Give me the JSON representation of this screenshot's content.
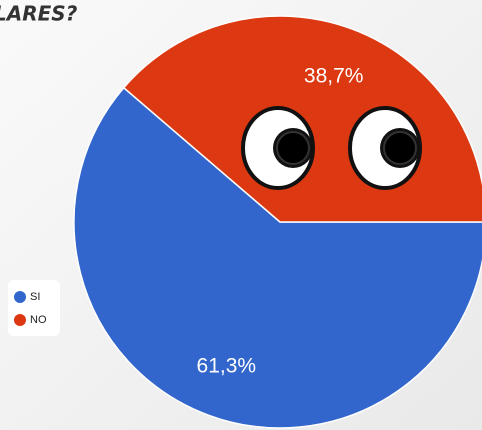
{
  "chart_data": {
    "type": "pie",
    "title": "LARES?",
    "categories": [
      "SI",
      "NO"
    ],
    "values": [
      61.3,
      38.7
    ],
    "value_labels": [
      "61,3%",
      "38,7%"
    ],
    "colors": [
      "#3366cc",
      "#dc3912"
    ]
  }
}
